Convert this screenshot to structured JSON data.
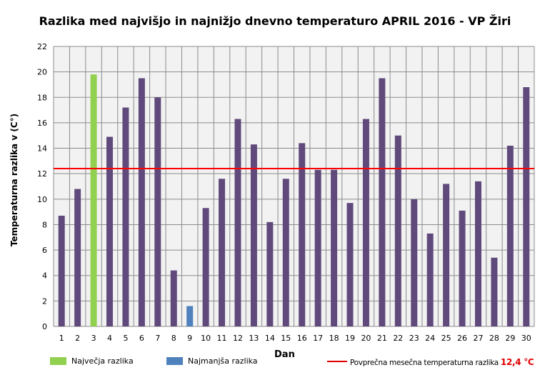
{
  "chart_data": {
    "type": "bar",
    "title": "Razlika med najvišjo in najnižjo dnevno temperaturo APRIL 2016 - VP Žiri",
    "xlabel": "Dan",
    "ylabel": "Temperaturna razlika v (C°)",
    "ylim": [
      0,
      22
    ],
    "yticks": [
      "0",
      "2",
      "4",
      "6",
      "8",
      "10",
      "12",
      "14",
      "16",
      "18",
      "20",
      "22"
    ],
    "categories": [
      "1",
      "2",
      "3",
      "4",
      "5",
      "6",
      "7",
      "8",
      "9",
      "10",
      "11",
      "12",
      "13",
      "14",
      "15",
      "16",
      "17",
      "18",
      "19",
      "20",
      "21",
      "22",
      "23",
      "24",
      "25",
      "26",
      "27",
      "28",
      "29",
      "30"
    ],
    "values": [
      8.7,
      10.8,
      19.8,
      14.9,
      17.2,
      19.5,
      18.0,
      4.4,
      1.6,
      9.3,
      11.6,
      16.3,
      14.3,
      8.2,
      11.6,
      14.4,
      12.3,
      12.3,
      9.7,
      16.3,
      19.5,
      15.0,
      10.0,
      7.3,
      11.2,
      9.1,
      11.4,
      5.4,
      14.2,
      18.8
    ],
    "max_index": 2,
    "min_index": 8,
    "average": 12.4,
    "grid": true,
    "colors": {
      "bar": "#604A7B",
      "max": "#92D050",
      "min": "#4F81BD",
      "average": "#FF0000",
      "plot_bg": "#F2F2F2",
      "grid": "#8C8C8C"
    },
    "legend": {
      "max_label": "Največja razlika",
      "min_label": "Najmanjša razlika",
      "avg_label": "Povprečna mesečna temperaturna razlika",
      "avg_value": "12,4 °C",
      "placement": "bottom"
    }
  }
}
